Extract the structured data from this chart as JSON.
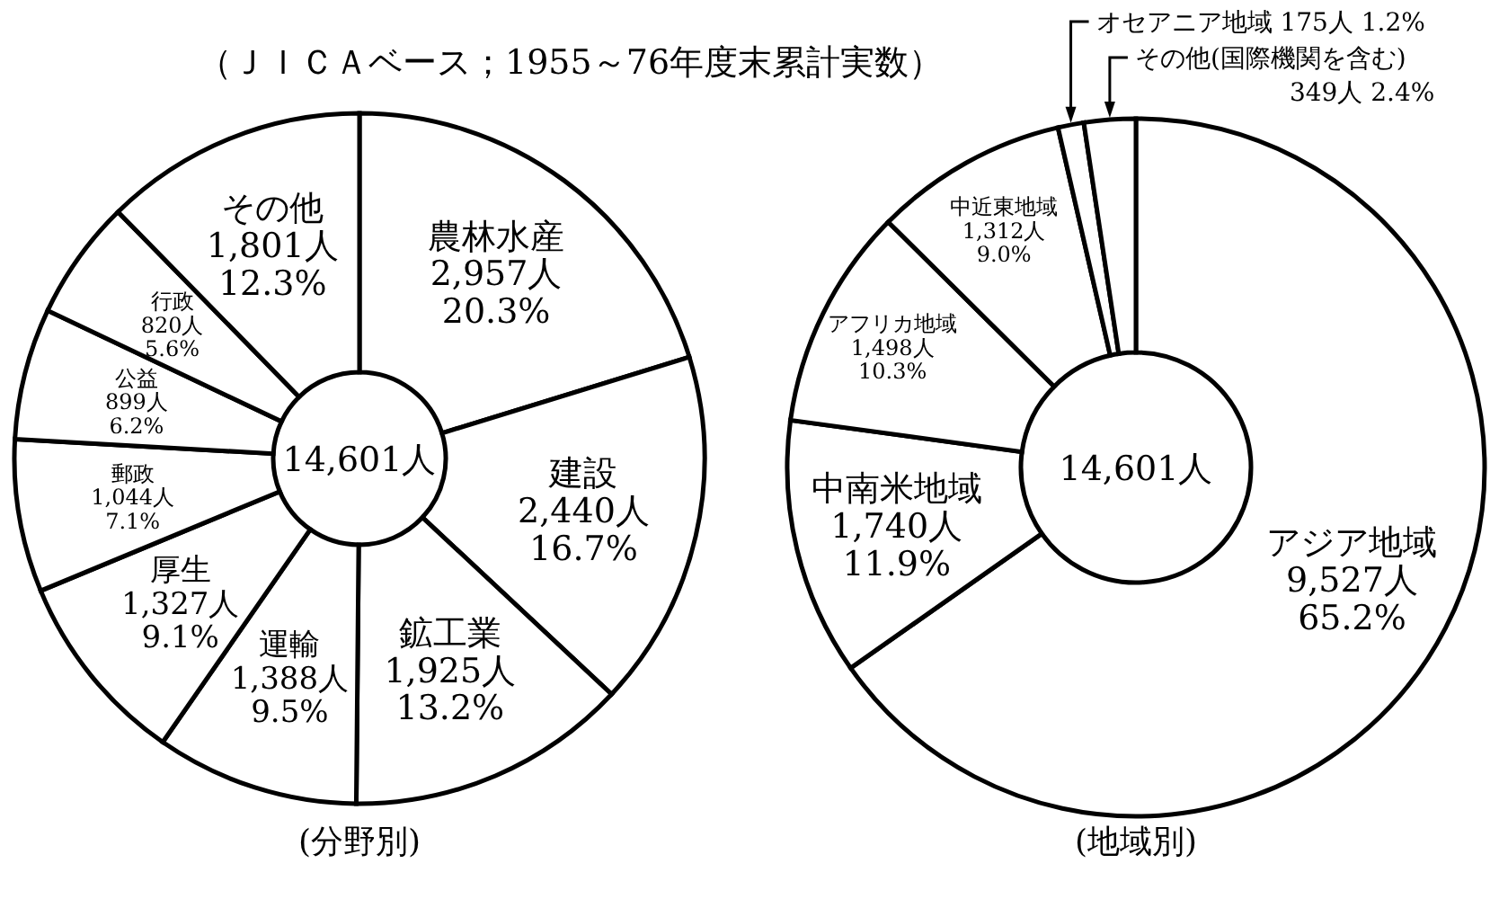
{
  "chart_data": [
    {
      "type": "donut",
      "title": "（ＪＩＣＡベース；1955～76年度末累計実数）",
      "subtitle": "(分野別)",
      "categories": [
        "農林水産",
        "建設",
        "鉱工業",
        "運輸",
        "厚生",
        "郵政",
        "公益",
        "行政",
        "その他"
      ],
      "values": [
        2957,
        2440,
        1925,
        1388,
        1327,
        1044,
        899,
        820,
        1801
      ],
      "value_labels": [
        "2,957人 20.3%",
        "2,440人 16.7%",
        "1,925人 13.2%",
        "1,388人 9.5%",
        "1,327人 9.1%",
        "1,044人 7.1%",
        "899人 6.2%",
        "820人 5.6%",
        "1,801人 12.3%"
      ],
      "colors": [
        "#ffffff",
        "#ffffff",
        "#ffffff",
        "#ffffff",
        "#ffffff",
        "#ffffff",
        "#ffffff",
        "#ffffff",
        "#ffffff"
      ],
      "annotations": [
        "14,601人"
      ],
      "legend": false
    },
    {
      "type": "donut",
      "subtitle": "(地域別)",
      "categories": [
        "アジア地域",
        "中南米地域",
        "アフリカ地域",
        "中近東地域",
        "オセアニア地域",
        "その他(国際機関を含む)"
      ],
      "values": [
        9527,
        1740,
        1498,
        1312,
        175,
        349
      ],
      "value_labels": [
        "9,527人 65.2%",
        "1,740人 11.9%",
        "1,498人 10.3%",
        "1,312人 9.0%",
        "175人 1.2%",
        "349人 2.4%"
      ],
      "colors": [
        "#ffffff",
        "#ffffff",
        "#ffffff",
        "#ffffff",
        "#ffffff",
        "#ffffff"
      ],
      "annotations": [
        "14,601人"
      ],
      "legend": false
    }
  ]
}
